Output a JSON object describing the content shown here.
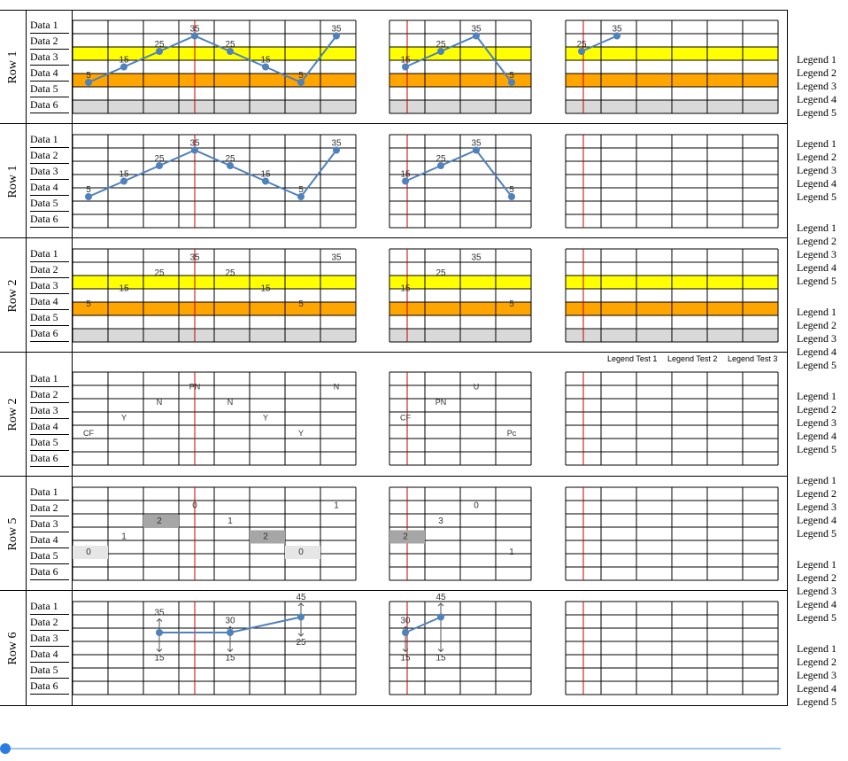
{
  "rows": [
    {
      "label": "Row 1",
      "type": "line",
      "bands": true,
      "gap": false,
      "panels": [
        [
          5,
          15,
          25,
          35,
          25,
          15,
          5,
          35
        ],
        [
          15,
          25,
          35,
          5
        ],
        [
          25,
          35
        ]
      ]
    },
    {
      "label": "Row 1",
      "type": "line",
      "bands": false,
      "gap": false,
      "panels": [
        [
          5,
          15,
          25,
          35,
          25,
          15,
          5,
          35
        ],
        [
          15,
          25,
          35,
          5
        ],
        []
      ]
    },
    {
      "label": "Row 2",
      "type": "values",
      "bands": true,
      "gap": false,
      "panels": [
        [
          5,
          15,
          25,
          35,
          25,
          15,
          5,
          35
        ],
        [
          15,
          25,
          35,
          5
        ],
        []
      ]
    },
    {
      "label": "Row 2",
      "type": "text",
      "bands": false,
      "gap": true,
      "panels": [
        [
          {
            "t": "CF",
            "y": 5
          },
          {
            "t": "Y",
            "y": 15
          },
          {
            "t": "N",
            "y": 25
          },
          {
            "t": "PN",
            "y": 35
          },
          {
            "t": "N",
            "y": 25
          },
          {
            "t": "Y",
            "y": 15
          },
          {
            "t": "Y",
            "y": 5
          },
          {
            "t": "N",
            "y": 35
          }
        ],
        [
          {
            "t": "CF",
            "y": 15
          },
          {
            "t": "PN",
            "y": 25
          },
          {
            "t": "U",
            "y": 35
          },
          {
            "t": "Pc",
            "y": 5
          }
        ],
        []
      ]
    },
    {
      "label": "Row 5",
      "type": "blocks",
      "bands": false,
      "gap": false,
      "panels": [
        [
          {
            "v": 0,
            "y": 5
          },
          {
            "v": 1,
            "y": 15
          },
          {
            "v": 2,
            "y": 25
          },
          {
            "v": 0,
            "y": 35
          },
          {
            "v": 1,
            "y": 25
          },
          {
            "v": 2,
            "y": 15
          },
          {
            "v": 0,
            "y": 5
          },
          {
            "v": 1,
            "y": 35
          }
        ],
        [
          {
            "v": 2,
            "y": 15
          },
          {
            "v": 3,
            "y": 25
          },
          {
            "v": 0,
            "y": 35
          },
          {
            "v": 1,
            "y": 5
          }
        ],
        []
      ]
    },
    {
      "label": "Row 6",
      "type": "range",
      "bands": false,
      "gap": false,
      "panels": [
        [
          null,
          null,
          {
            "lo": 15,
            "mid": 20,
            "hi": 35
          },
          null,
          {
            "lo": 15,
            "mid": 20,
            "hi": 30
          },
          null,
          {
            "lo": 25,
            "mid": 30,
            "hi": 45
          },
          null
        ],
        [
          {
            "lo": 15,
            "mid": 20,
            "hi": 30
          },
          {
            "lo": 15,
            "mid": 30,
            "hi": 45
          },
          null,
          null
        ],
        []
      ]
    }
  ],
  "data_labels": [
    "Data 1",
    "Data 2",
    "Data 3",
    "Data 4",
    "Data 5",
    "Data 6"
  ],
  "legend_items": [
    "Legend 1",
    "Legend 2",
    "Legend 3",
    "Legend 4",
    "Legend 5"
  ],
  "legend_tests": [
    "Legend Test 1",
    "Legend Test 2",
    "Legend Test 3"
  ],
  "colors": {
    "line": "#4f81bd",
    "yellow": "#ffff00",
    "orange": "#ffa500",
    "gray": "#d9d9d9",
    "red": "#c00000",
    "block": "#a6a6a6",
    "block_light": "#e6e6e6",
    "arrow": "#555555"
  }
}
